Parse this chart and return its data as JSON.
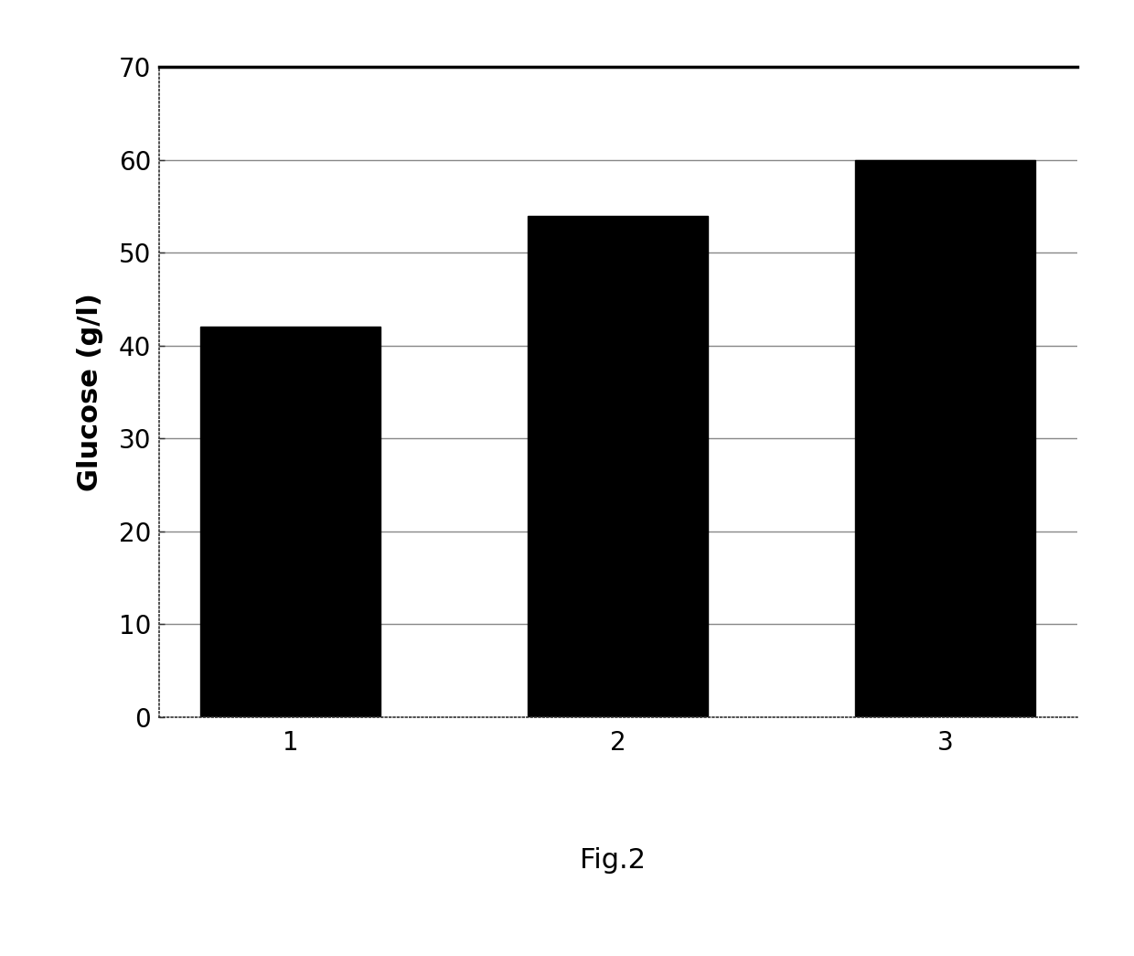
{
  "categories": [
    "1",
    "2",
    "3"
  ],
  "values": [
    42,
    54,
    60
  ],
  "bar_color": "#000000",
  "ylabel": "Glucose (g/l)",
  "ylim": [
    0,
    70
  ],
  "yticks": [
    0,
    10,
    20,
    30,
    40,
    50,
    60,
    70
  ],
  "caption": "Fig.2",
  "background_color": "#ffffff",
  "bar_width": 0.55,
  "grid_color": "#888888",
  "ylabel_fontsize": 22,
  "tick_fontsize": 20,
  "caption_fontsize": 22
}
